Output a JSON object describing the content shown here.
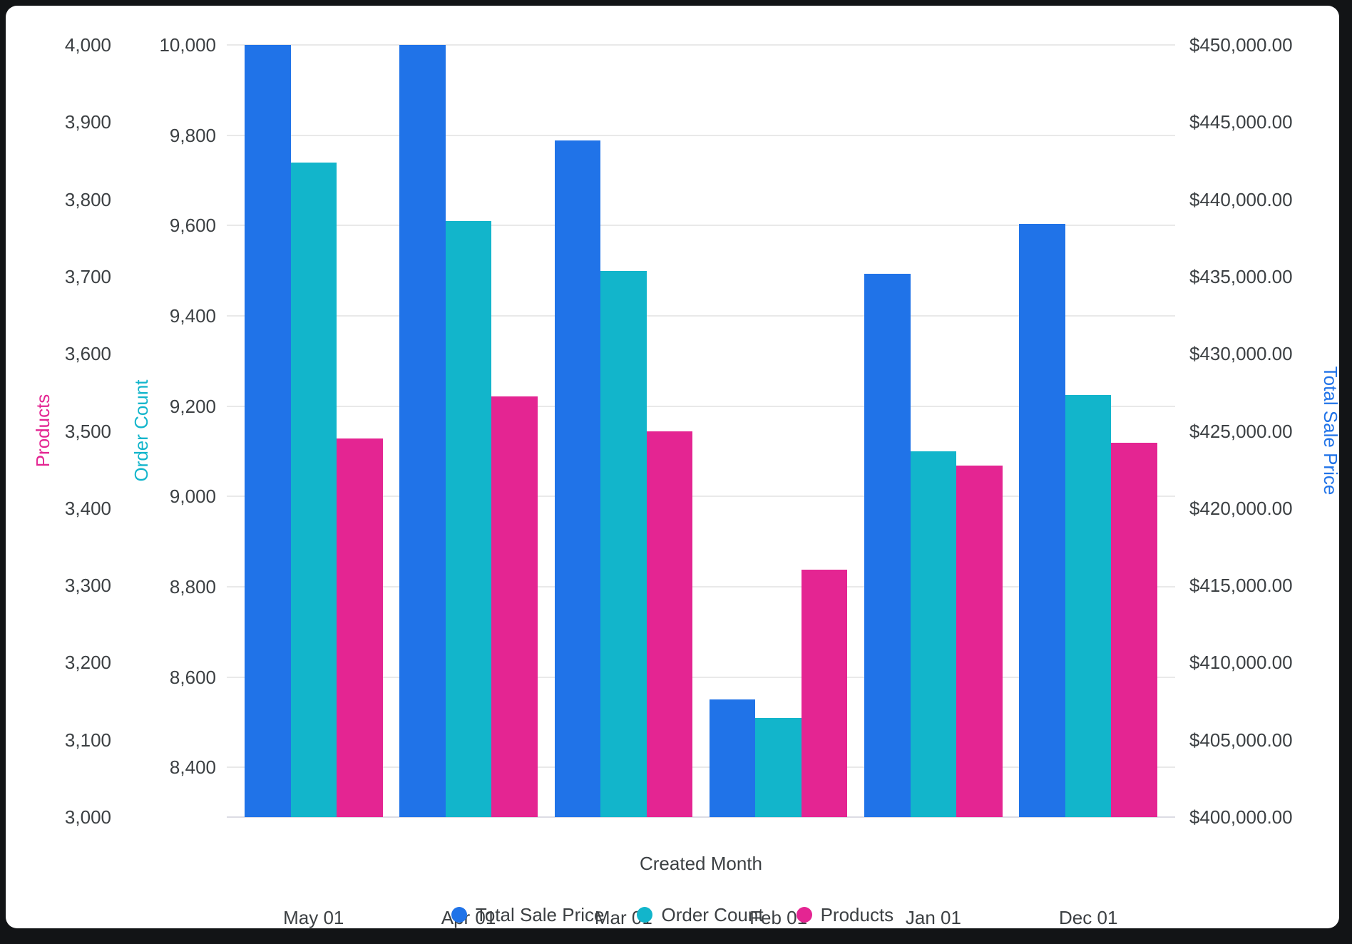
{
  "window": {
    "background_color": "#121416",
    "card_color": "#ffffff"
  },
  "text_color": "#3c4043",
  "gridline_color": "#e9e9e9",
  "chart_data": {
    "type": "bar",
    "categories": [
      "May 01",
      "Apr 01",
      "Mar 01",
      "Feb 01",
      "Jan 01",
      "Dec 01"
    ],
    "xlabel": "Created Month",
    "grid": "horizontal",
    "legend_position": "bottom",
    "series": [
      {
        "name": "Total Sale Price",
        "axis": "price",
        "color": "#2073E8",
        "values": [
          450000,
          450000,
          443800,
          407600,
          435200,
          438400
        ]
      },
      {
        "name": "Order Count",
        "axis": "order",
        "color": "#12B5CB",
        "values": [
          9740,
          9610,
          9500,
          8510,
          9100,
          9225
        ]
      },
      {
        "name": "Products",
        "axis": "products",
        "color": "#E42592",
        "values": [
          3490,
          3545,
          3500,
          3320,
          3455,
          3485
        ]
      }
    ],
    "axes": {
      "products": {
        "title": "Products",
        "title_color": "#E42592",
        "side": "left",
        "min": 3000,
        "max": 4000,
        "tick_labels": [
          "4,000",
          "3,900",
          "3,800",
          "3,700",
          "3,600",
          "3,500",
          "3,400",
          "3,300",
          "3,200",
          "3,100",
          "3,000"
        ]
      },
      "order": {
        "title": "Order Count",
        "title_color": "#12B5CB",
        "side": "left",
        "min": 8290,
        "max": 10000,
        "grid_ticks": true,
        "tick_labels": [
          "10,000",
          "9,800",
          "9,600",
          "9,400",
          "9,200",
          "9,000",
          "8,800",
          "8,600",
          "8,400"
        ],
        "tick_values": [
          10000,
          9800,
          9600,
          9400,
          9200,
          9000,
          8800,
          8600,
          8400
        ]
      },
      "price": {
        "title": "Total Sale Price",
        "title_color": "#2073E8",
        "side": "right",
        "min": 400000,
        "max": 450000,
        "tick_labels": [
          "$450,000.00",
          "$445,000.00",
          "$440,000.00",
          "$435,000.00",
          "$430,000.00",
          "$425,000.00",
          "$420,000.00",
          "$415,000.00",
          "$410,000.00",
          "$405,000.00",
          "$400,000.00"
        ]
      }
    },
    "legend": {
      "items": [
        "Total Sale Price",
        "Order Count",
        "Products"
      ]
    }
  }
}
